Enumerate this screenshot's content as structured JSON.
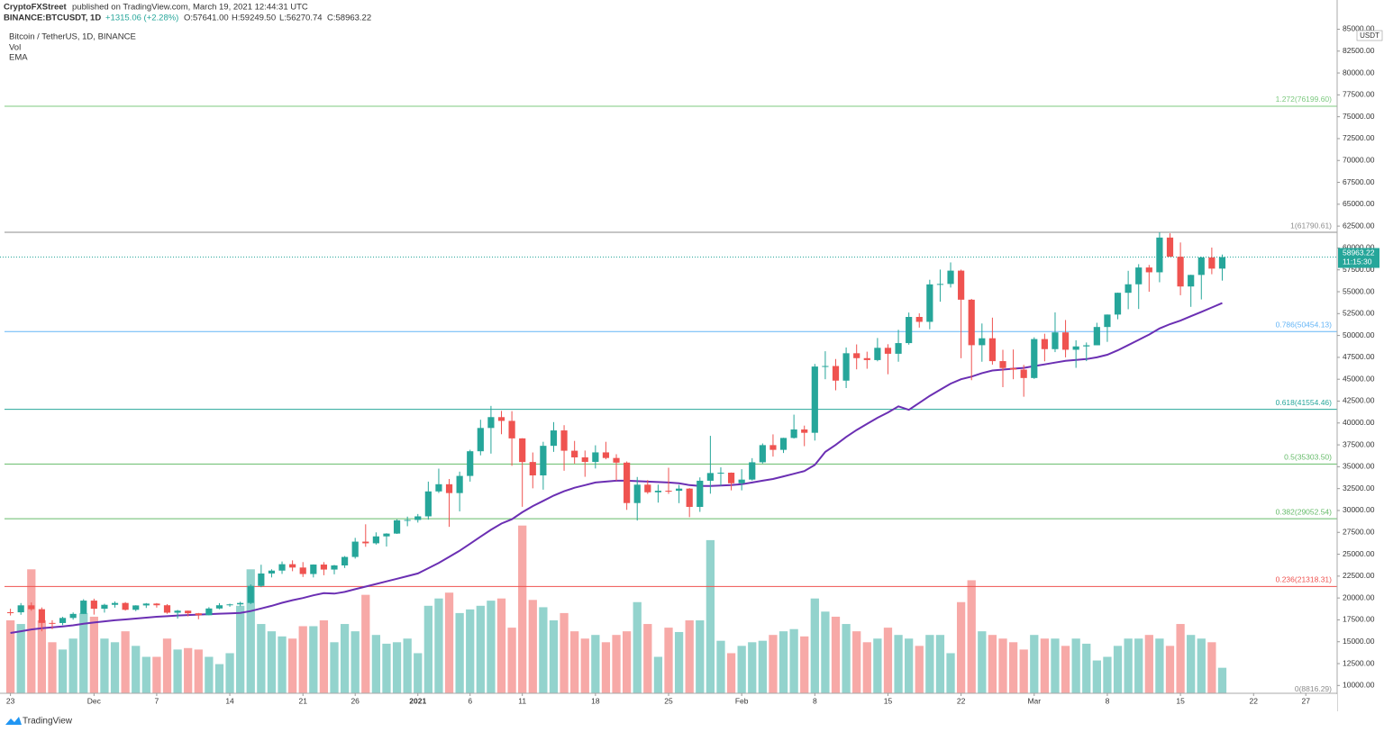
{
  "header": {
    "publisher": "CryptoFXStreet",
    "published": "published on TradingView.com, March 19, 2021 12:44:31 UTC",
    "symbol": "BINANCE:BTCUSDT, 1D",
    "change": "+1315.06 (+2.28%)",
    "ohlc": [
      "O:57641.00",
      "H:59249.50",
      "L:56270.74",
      "C:58963.22"
    ]
  },
  "legend": [
    "Bitcoin / TetherUS, 1D, BINANCE",
    "Vol",
    "EMA"
  ],
  "footer": "TradingView",
  "chart_data": {
    "type": "candlestick",
    "x": [
      "2020-11-23",
      "2020-11-24",
      "2020-11-25",
      "2020-11-26",
      "2020-11-27",
      "2020-11-28",
      "2020-11-29",
      "2020-11-30",
      "2020-12-01",
      "2020-12-02",
      "2020-12-03",
      "2020-12-04",
      "2020-12-05",
      "2020-12-06",
      "2020-12-07",
      "2020-12-08",
      "2020-12-09",
      "2020-12-10",
      "2020-12-11",
      "2020-12-12",
      "2020-12-13",
      "2020-12-14",
      "2020-12-15",
      "2020-12-16",
      "2020-12-17",
      "2020-12-18",
      "2020-12-19",
      "2020-12-20",
      "2020-12-21",
      "2020-12-22",
      "2020-12-23",
      "2020-12-24",
      "2020-12-25",
      "2020-12-26",
      "2020-12-27",
      "2020-12-28",
      "2020-12-29",
      "2020-12-30",
      "2020-12-31",
      "2021-01-01",
      "2021-01-02",
      "2021-01-03",
      "2021-01-04",
      "2021-01-05",
      "2021-01-06",
      "2021-01-07",
      "2021-01-08",
      "2021-01-09",
      "2021-01-10",
      "2021-01-11",
      "2021-01-12",
      "2021-01-13",
      "2021-01-14",
      "2021-01-15",
      "2021-01-16",
      "2021-01-17",
      "2021-01-18",
      "2021-01-19",
      "2021-01-20",
      "2021-01-21",
      "2021-01-22",
      "2021-01-23",
      "2021-01-24",
      "2021-01-25",
      "2021-01-26",
      "2021-01-27",
      "2021-01-28",
      "2021-01-29",
      "2021-01-30",
      "2021-01-31",
      "2021-02-01",
      "2021-02-02",
      "2021-02-03",
      "2021-02-04",
      "2021-02-05",
      "2021-02-06",
      "2021-02-07",
      "2021-02-08",
      "2021-02-09",
      "2021-02-10",
      "2021-02-11",
      "2021-02-12",
      "2021-02-13",
      "2021-02-14",
      "2021-02-15",
      "2021-02-16",
      "2021-02-17",
      "2021-02-18",
      "2021-02-19",
      "2021-02-20",
      "2021-02-21",
      "2021-02-22",
      "2021-02-23",
      "2021-02-24",
      "2021-02-25",
      "2021-02-26",
      "2021-02-27",
      "2021-02-28",
      "2021-03-01",
      "2021-03-02",
      "2021-03-03",
      "2021-03-04",
      "2021-03-05",
      "2021-03-06",
      "2021-03-07",
      "2021-03-08",
      "2021-03-09",
      "2021-03-10",
      "2021-03-11",
      "2021-03-12",
      "2021-03-13",
      "2021-03-14",
      "2021-03-15",
      "2021-03-16",
      "2021-03-17",
      "2021-03-18",
      "2021-03-19"
    ],
    "open": [
      18370,
      18365,
      19160,
      18720,
      17150,
      17140,
      17720,
      18180,
      19700,
      18770,
      19220,
      19430,
      18650,
      19150,
      19360,
      19170,
      18320,
      18550,
      18250,
      18030,
      18800,
      19170,
      19270,
      19430,
      21380,
      22800,
      23130,
      23860,
      23480,
      22740,
      23820,
      23250,
      23720,
      24690,
      26440,
      26250,
      27040,
      27360,
      28880,
      28920,
      29330,
      32180,
      33000,
      31990,
      33950,
      36770,
      39430,
      40670,
      40240,
      38240,
      35540,
      34010,
      37390,
      39150,
      36830,
      36070,
      35550,
      36640,
      36000,
      35470,
      30850,
      32950,
      32080,
      32260,
      32250,
      32500,
      30410,
      33400,
      34280,
      34320,
      33110,
      33530,
      35510,
      37470,
      36930,
      38290,
      39260,
      38880,
      46450,
      46510,
      44840,
      47970,
      47410,
      47190,
      48590,
      47910,
      49130,
      52120,
      51560,
      55840,
      55890,
      57410,
      54090,
      48890,
      49680,
      47070,
      46280,
      46100,
      45140,
      49590,
      48440,
      50350,
      48370,
      48750,
      48880,
      50970,
      52390,
      54880,
      55850,
      57770,
      57220,
      61190,
      59000,
      55600,
      56920,
      58920,
      57641
    ],
    "high": [
      18770,
      19420,
      19490,
      18920,
      17460,
      17850,
      18350,
      19860,
      19920,
      19340,
      19600,
      19530,
      19170,
      19420,
      19420,
      19300,
      18640,
      18560,
      18290,
      18950,
      19410,
      19350,
      19570,
      21560,
      23800,
      23280,
      24170,
      24300,
      24100,
      23840,
      24100,
      23780,
      24790,
      26870,
      28420,
      27500,
      27400,
      28990,
      29300,
      29600,
      33300,
      34780,
      33600,
      34440,
      36940,
      40370,
      41950,
      41380,
      41350,
      38260,
      36630,
      37850,
      40100,
      39750,
      37950,
      36850,
      37450,
      37850,
      36430,
      35600,
      33830,
      33480,
      32950,
      34880,
      32920,
      32560,
      33780,
      38530,
      34930,
      34340,
      34720,
      35980,
      37660,
      38700,
      38310,
      40950,
      39700,
      46750,
      48200,
      47310,
      48630,
      48980,
      48150,
      49710,
      49000,
      50650,
      52620,
      52530,
      56370,
      57530,
      58350,
      57530,
      54180,
      51370,
      52040,
      48370,
      48400,
      46640,
      49790,
      50200,
      52640,
      51770,
      49450,
      49200,
      51450,
      52400,
      54900,
      57390,
      58150,
      58060,
      61790,
      61680,
      60630,
      56940,
      58990,
      60050,
      59249.5
    ],
    "low": [
      18000,
      18080,
      18540,
      16200,
      16440,
      16900,
      17520,
      18180,
      18100,
      18330,
      18900,
      18560,
      18500,
      18860,
      18900,
      18200,
      17650,
      17900,
      17570,
      18020,
      18710,
      19000,
      19050,
      19300,
      21230,
      22350,
      22750,
      23060,
      22400,
      22350,
      22600,
      22700,
      23430,
      24500,
      25850,
      26100,
      25880,
      27320,
      28200,
      28620,
      28950,
      32000,
      28130,
      29900,
      33300,
      36300,
      36500,
      38720,
      35110,
      30420,
      32530,
      32380,
      36700,
      34540,
      35360,
      33850,
      34800,
      35850,
      33400,
      30070,
      28850,
      31900,
      30900,
      31900,
      30840,
      29240,
      29840,
      31920,
      32820,
      32300,
      32300,
      33420,
      35370,
      36160,
      36570,
      38220,
      37350,
      37990,
      45000,
      43730,
      43990,
      46130,
      46200,
      47050,
      45570,
      47000,
      48950,
      50900,
      50710,
      53860,
      55480,
      47400,
      44890,
      47000,
      46670,
      44100,
      45000,
      43000,
      45040,
      47050,
      48100,
      47500,
      46300,
      47070,
      48880,
      49270,
      51850,
      53000,
      53030,
      55000,
      56080,
      59000,
      54600,
      53270,
      54120,
      57000,
      56270.74
    ],
    "close": [
      18365,
      19160,
      18720,
      17150,
      17140,
      17720,
      18180,
      19700,
      18770,
      19220,
      19430,
      18650,
      19150,
      19360,
      19170,
      18320,
      18550,
      18250,
      18030,
      18800,
      19170,
      19270,
      19430,
      21380,
      22800,
      23130,
      23860,
      23480,
      22740,
      23820,
      23250,
      23720,
      24690,
      26440,
      26250,
      27040,
      27360,
      28880,
      28920,
      29330,
      32180,
      33000,
      31990,
      33950,
      36770,
      39430,
      40670,
      40240,
      38240,
      35540,
      34010,
      37390,
      39150,
      36830,
      36070,
      35550,
      36640,
      36000,
      35470,
      30850,
      32950,
      32080,
      32260,
      32250,
      32500,
      30410,
      33400,
      34280,
      34320,
      33110,
      33530,
      35510,
      37470,
      36930,
      38290,
      39260,
      38880,
      46450,
      46510,
      44840,
      47970,
      47410,
      47190,
      48590,
      47910,
      49130,
      52120,
      51560,
      55840,
      55890,
      57410,
      54090,
      48890,
      49680,
      47070,
      46280,
      46100,
      45140,
      49590,
      48440,
      50350,
      48370,
      48750,
      48880,
      50970,
      52390,
      54880,
      55850,
      57770,
      57220,
      61190,
      59000,
      55600,
      56920,
      58920,
      57641,
      58963.22
    ],
    "volume": [
      100,
      95,
      170,
      100,
      70,
      60,
      75,
      110,
      105,
      75,
      70,
      85,
      65,
      50,
      50,
      75,
      60,
      62,
      60,
      50,
      40,
      55,
      120,
      170,
      95,
      85,
      78,
      75,
      92,
      92,
      100,
      70,
      95,
      85,
      135,
      80,
      68,
      70,
      75,
      55,
      120,
      130,
      138,
      110,
      115,
      120,
      127,
      130,
      90,
      230,
      128,
      118,
      100,
      110,
      85,
      75,
      80,
      70,
      80,
      85,
      125,
      95,
      50,
      90,
      84,
      100,
      100,
      210,
      72,
      55,
      65,
      70,
      72,
      80,
      85,
      88,
      78,
      130,
      112,
      105,
      95,
      85,
      70,
      75,
      90,
      80,
      75,
      65,
      80,
      80,
      55,
      125,
      155,
      85,
      80,
      75,
      70,
      60,
      80,
      75,
      75,
      65,
      75,
      68,
      45,
      50,
      65,
      75,
      75,
      80,
      75,
      65,
      95,
      80,
      75,
      70,
      35
    ],
    "ema": [
      16000,
      16200,
      16400,
      16550,
      16650,
      16750,
      16880,
      17050,
      17200,
      17330,
      17450,
      17550,
      17650,
      17750,
      17850,
      17920,
      18000,
      18050,
      18100,
      18150,
      18200,
      18250,
      18300,
      18500,
      18800,
      19100,
      19450,
      19750,
      20000,
      20300,
      20550,
      20500,
      20700,
      21000,
      21300,
      21600,
      21900,
      22200,
      22500,
      22800,
      23400,
      24000,
      24700,
      25400,
      26200,
      27000,
      27800,
      28500,
      29000,
      29800,
      30500,
      31100,
      31700,
      32200,
      32600,
      32900,
      33200,
      33300,
      33400,
      33400,
      33350,
      33300,
      33250,
      33200,
      33100,
      32900,
      32800,
      32800,
      32850,
      32900,
      33000,
      33200,
      33400,
      33600,
      33900,
      34200,
      34500,
      35200,
      36700,
      37500,
      38400,
      39200,
      39900,
      40600,
      41200,
      41900,
      41500,
      42300,
      43100,
      43800,
      44500,
      45000,
      45300,
      45700,
      46000,
      46100,
      46200,
      46300,
      46500,
      46700,
      46900,
      47100,
      47200,
      47300,
      47500,
      47800,
      48300,
      48900,
      49500,
      50100,
      50800,
      51300,
      51700,
      52200,
      52700,
      53200,
      53700
    ],
    "up_color": "#26a69a",
    "down_color": "#ef5350",
    "up_volume_color": "#93d3cd",
    "down_volume_color": "#f7a9a7",
    "ema_color": "#6b2fb3",
    "ylim": [
      8800,
      88340
    ],
    "vlim": [
      0,
      300
    ],
    "xlim": [
      "2020-11-22",
      "2021-03-30"
    ],
    "yticks": [
      {
        "value": 10000,
        "label": "10000.00"
      },
      {
        "value": 12500,
        "label": "12500.00"
      },
      {
        "value": 15000,
        "label": "15000.00"
      },
      {
        "value": 17500,
        "label": "17500.00"
      },
      {
        "value": 20000,
        "label": "20000.00"
      },
      {
        "value": 22500,
        "label": "22500.00"
      },
      {
        "value": 25000,
        "label": "25000.00"
      },
      {
        "value": 27500,
        "label": "27500.00"
      },
      {
        "value": 30000,
        "label": "30000.00"
      },
      {
        "value": 32500,
        "label": "32500.00"
      },
      {
        "value": 35000,
        "label": "35000.00"
      },
      {
        "value": 37500,
        "label": "37500.00"
      },
      {
        "value": 40000,
        "label": "40000.00"
      },
      {
        "value": 42500,
        "label": "42500.00"
      },
      {
        "value": 45000,
        "label": "45000.00"
      },
      {
        "value": 47500,
        "label": "47500.00"
      },
      {
        "value": 50000,
        "label": "50000.00"
      },
      {
        "value": 52500,
        "label": "52500.00"
      },
      {
        "value": 55000,
        "label": "55000.00"
      },
      {
        "value": 57500,
        "label": "57500.00"
      },
      {
        "value": 60000,
        "label": "60000.00"
      },
      {
        "value": 62500,
        "label": "62500.00"
      },
      {
        "value": 65000,
        "label": "65000.00"
      },
      {
        "value": 67500,
        "label": "67500.00"
      },
      {
        "value": 70000,
        "label": "70000.00"
      },
      {
        "value": 72500,
        "label": "72500.00"
      },
      {
        "value": 75000,
        "label": "75000.00"
      },
      {
        "value": 77500,
        "label": "77500.00"
      },
      {
        "value": 80000,
        "label": "80000.00"
      },
      {
        "value": 82500,
        "label": "82500.00"
      },
      {
        "value": 85000,
        "label": "85000.00"
      }
    ],
    "xticks": [
      {
        "value": "2020-11-23",
        "label": "23"
      },
      {
        "value": "2020-12-01",
        "label": "Dec"
      },
      {
        "value": "2020-12-07",
        "label": "7"
      },
      {
        "value": "2020-12-14",
        "label": "14"
      },
      {
        "value": "2020-12-21",
        "label": "21"
      },
      {
        "value": "2020-12-26",
        "label": "26"
      },
      {
        "value": "2021-01-01",
        "label": "2021"
      },
      {
        "value": "2021-01-06",
        "label": "6"
      },
      {
        "value": "2021-01-11",
        "label": "11"
      },
      {
        "value": "2021-01-18",
        "label": "18"
      },
      {
        "value": "2021-01-25",
        "label": "25"
      },
      {
        "value": "2021-02-01",
        "label": "Feb"
      },
      {
        "value": "2021-02-08",
        "label": "8"
      },
      {
        "value": "2021-02-15",
        "label": "15"
      },
      {
        "value": "2021-02-22",
        "label": "22"
      },
      {
        "value": "2021-03-01",
        "label": "Mar"
      },
      {
        "value": "2021-03-08",
        "label": "8"
      },
      {
        "value": "2021-03-15",
        "label": "15"
      },
      {
        "value": "2021-03-22",
        "label": "22"
      },
      {
        "value": "2021-03-27",
        "label": "27"
      }
    ],
    "axis_unit": "USDT",
    "last_price": {
      "value": 58963.22,
      "label": "58963.22",
      "countdown": "11:15:30"
    },
    "fib_levels": [
      {
        "value": 76199.6,
        "label": "1.272(76199.60)",
        "color": "#7cc97f"
      },
      {
        "value": 61790.61,
        "label": "1(61790.61)",
        "color": "#8c8c8c"
      },
      {
        "value": 50454.13,
        "label": "0.786(50454.13)",
        "color": "#64b5f6"
      },
      {
        "value": 41554.46,
        "label": "0.618(41554.46)",
        "color": "#26a69a"
      },
      {
        "value": 35303.5,
        "label": "0.5(35303.50)",
        "color": "#66bb6a"
      },
      {
        "value": 29052.54,
        "label": "0.382(29052.54)",
        "color": "#66bb6a"
      },
      {
        "value": 21318.31,
        "label": "0.236(21318.31)",
        "color": "#ef5350"
      },
      {
        "value": 8816.29,
        "label": "0(8816.29)",
        "color": "#8c8c8c"
      }
    ]
  }
}
